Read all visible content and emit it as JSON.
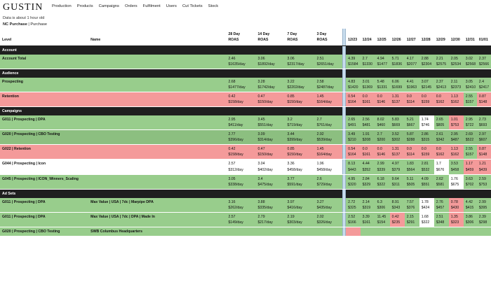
{
  "brand": "GUSTIN",
  "nav": [
    "Production",
    "Products",
    "Campaigns",
    "Orders",
    "Fulfilment",
    "Users",
    "Cut Tickets",
    "Stock"
  ],
  "note": "Data is about 1 hour old",
  "breadcrumb": {
    "current": "NC Purchase",
    "sep": "|",
    "parent": "Purchase"
  },
  "columns": {
    "level": "Level",
    "name": "Name",
    "periods": [
      {
        "title": "28 Day",
        "sub": "ROAS"
      },
      {
        "title": "14 Day",
        "sub": "ROAS"
      },
      {
        "title": "7 Day",
        "sub": "ROAS"
      },
      {
        "title": "3 Day",
        "sub": "ROAS"
      }
    ],
    "days": [
      "12/23",
      "12/24",
      "12/25",
      "12/26",
      "12/27",
      "12/28",
      "12/29",
      "12/30",
      "12/31",
      "01/01"
    ]
  },
  "colors": {
    "green": "#98cd8c",
    "dark_green": "#8cbf80",
    "red": "#f49a9a",
    "white": "#ffffff",
    "section": "#1f1f1f"
  },
  "sections": [
    {
      "title": "Account",
      "rows": [
        {
          "level": "Account Total",
          "name": "",
          "bg": "g",
          "periods": [
            [
              "2.46",
              "$1635/day"
            ],
            [
              "3.06",
              "$1892/day"
            ],
            [
              "3.06",
              "$2317/day"
            ],
            [
              "2.51",
              "$2651/day"
            ]
          ],
          "days": [
            [
              "4.39",
              "$1584",
              "g"
            ],
            [
              "2.7",
              "$1330",
              "g"
            ],
            [
              "4.94",
              "$1477",
              "g"
            ],
            [
              "5.71",
              "$1836",
              "g"
            ],
            [
              "4.17",
              "$2077",
              "g"
            ],
            [
              "2.88",
              "$2304",
              "g"
            ],
            [
              "2.21",
              "$2575",
              "g"
            ],
            [
              "2.05",
              "$2534",
              "g"
            ],
            [
              "3.02",
              "$2568",
              "g"
            ],
            [
              "2.37",
              "$2566",
              "g"
            ]
          ]
        }
      ]
    },
    {
      "title": "Audience",
      "rows": [
        {
          "level": "Prospecting",
          "name": "",
          "bg": "g",
          "periods": [
            [
              "2.68",
              "$1477/day"
            ],
            [
              "3.28",
              "$1742/day"
            ],
            [
              "3.22",
              "$2202/day"
            ],
            [
              "2.58",
              "$2487/day"
            ]
          ],
          "days": [
            [
              "4.83",
              "$1420",
              "g"
            ],
            [
              "3.01",
              "$1369",
              "g"
            ],
            [
              "5.48",
              "$1331",
              "g"
            ],
            [
              "6.06",
              "$1699",
              "g"
            ],
            [
              "4.41",
              "$1963",
              "g"
            ],
            [
              "3.07",
              "$2145",
              "g"
            ],
            [
              "2.37",
              "$2413",
              "g"
            ],
            [
              "2.11",
              "$2373",
              "g"
            ],
            [
              "3.05",
              "$2410",
              "g"
            ],
            [
              "2.4",
              "$2417",
              "g"
            ]
          ]
        },
        {
          "level": "Retention",
          "name": "",
          "bg": "r",
          "periods": [
            [
              "0.42",
              "$158/day"
            ],
            [
              "0.47",
              "$150/day"
            ],
            [
              "0.85",
              "$150/day"
            ],
            [
              "1.45",
              "$164/day"
            ]
          ],
          "days": [
            [
              "0.54",
              "$164",
              "r"
            ],
            [
              "0.0",
              "$161",
              "r"
            ],
            [
              "0.0",
              "$146",
              "r"
            ],
            [
              "1.31",
              "$137",
              "r"
            ],
            [
              "0.0",
              "$114",
              "r"
            ],
            [
              "0.0",
              "$159",
              "r"
            ],
            [
              "0.0",
              "$162",
              "r"
            ],
            [
              "1.13",
              "$162",
              "r"
            ],
            [
              "2.55",
              "$157",
              "g"
            ],
            [
              "0.87",
              "$148",
              "r"
            ]
          ]
        }
      ]
    },
    {
      "title": "Campaigns",
      "rows": [
        {
          "level": "G011 | Prospecting | DPA",
          "name": "",
          "bg": "g",
          "periods": [
            [
              "2.95",
              "$411/day"
            ],
            [
              "3.45",
              "$551/day"
            ],
            [
              "3.2",
              "$719/day"
            ],
            [
              "2.7",
              "$761/day"
            ]
          ],
          "days": [
            [
              "2.65",
              "$491",
              "g"
            ],
            [
              "2.56",
              "$481",
              "g"
            ],
            [
              "8.02",
              "$460",
              "g"
            ],
            [
              "5.83",
              "$669",
              "g"
            ],
            [
              "5.21",
              "$667",
              "g"
            ],
            [
              "1.74",
              "$746",
              "w"
            ],
            [
              "2.65",
              "$805",
              "g"
            ],
            [
              "1.01",
              "$753",
              "r"
            ],
            [
              "2.95",
              "$722",
              "g"
            ],
            [
              "2.73",
              "$693",
              "g"
            ]
          ]
        },
        {
          "level": "G020 | Prospecting | CBO Testing",
          "name": "",
          "bg": "dg",
          "periods": [
            [
              "2.77",
              "$396/day"
            ],
            [
              "3.09",
              "$314/day"
            ],
            [
              "3.44",
              "$399/day"
            ],
            [
              "2.92",
              "$539/day"
            ]
          ],
          "days": [
            [
              "3.49",
              "$210",
              "dg"
            ],
            [
              "1.91",
              "$208",
              "dg"
            ],
            [
              "2.7",
              "$200",
              "dg"
            ],
            [
              "3.52",
              "$302",
              "dg"
            ],
            [
              "5.87",
              "$288",
              "dg"
            ],
            [
              "2.86",
              "$315",
              "dg"
            ],
            [
              "2.61",
              "$342",
              "dg"
            ],
            [
              "2.95",
              "$487",
              "dg"
            ],
            [
              "2.69",
              "$522",
              "dg"
            ],
            [
              "2.97",
              "$607",
              "dg"
            ]
          ]
        },
        {
          "level": "G022 | Retention",
          "name": "",
          "bg": "r",
          "periods": [
            [
              "0.42",
              "$158/day"
            ],
            [
              "0.47",
              "$150/day"
            ],
            [
              "0.85",
              "$150/day"
            ],
            [
              "1.45",
              "$164/day"
            ]
          ],
          "days": [
            [
              "0.54",
              "$164",
              "r"
            ],
            [
              "0.0",
              "$161",
              "r"
            ],
            [
              "0.0",
              "$146",
              "r"
            ],
            [
              "1.31",
              "$137",
              "r"
            ],
            [
              "0.0",
              "$114",
              "r"
            ],
            [
              "0.0",
              "$159",
              "r"
            ],
            [
              "0.0",
              "$162",
              "r"
            ],
            [
              "1.13",
              "$162",
              "r"
            ],
            [
              "2.55",
              "$157",
              "g"
            ],
            [
              "0.87",
              "$148",
              "r"
            ]
          ]
        },
        {
          "level": "G044 | Prospecting | Icon",
          "name": "",
          "bg": "w",
          "periods": [
            [
              "2.57",
              "$312/day"
            ],
            [
              "3.04",
              "$402/day"
            ],
            [
              "3.36",
              "$458/day"
            ],
            [
              "1.96",
              "$458/day"
            ]
          ],
          "days": [
            [
              "8.13",
              "$443",
              "g"
            ],
            [
              "4.44",
              "$352",
              "g"
            ],
            [
              "2.99",
              "$339",
              "g"
            ],
            [
              "4.97",
              "$379",
              "g"
            ],
            [
              "1.83",
              "$564",
              "g"
            ],
            [
              "2.81",
              "$532",
              "g"
            ],
            [
              "1.7",
              "$676",
              "w"
            ],
            [
              "3.53",
              "$458",
              "g"
            ],
            [
              "1.17",
              "$459",
              "r"
            ],
            [
              "1.21",
              "$439",
              "r"
            ]
          ]
        },
        {
          "level": "G045 | Prospecting | ICON_Winners_Scaling",
          "name": "",
          "bg": "g",
          "periods": [
            [
              "3.05",
              "$338/day"
            ],
            [
              "3.4",
              "$475/day"
            ],
            [
              "3.77",
              "$591/day"
            ],
            [
              "2.6",
              "$729/day"
            ]
          ],
          "days": [
            [
              "4.95",
              "$320",
              "g"
            ],
            [
              "2.84",
              "$329",
              "g"
            ],
            [
              "6.18",
              "$322",
              "g"
            ],
            [
              "9.64",
              "$311",
              "g"
            ],
            [
              "5.11",
              "$505",
              "g"
            ],
            [
              "4.09",
              "$551",
              "g"
            ],
            [
              "2.62",
              "$581",
              "g"
            ],
            [
              "1.76",
              "$675",
              "w"
            ],
            [
              "3.63",
              "$702",
              "g"
            ],
            [
              "2.59",
              "$753",
              "g"
            ]
          ]
        }
      ]
    },
    {
      "title": "Ad Sets",
      "rows": [
        {
          "level": "G011 | Prospecting | DPA",
          "name": "Max Value | USA | 7dc | Marpipe DPA",
          "bg": "g",
          "periods": [
            [
              "3.16",
              "$262/day"
            ],
            [
              "3.88",
              "$335/day"
            ],
            [
              "3.97",
              "$416/day"
            ],
            [
              "3.27",
              "$435/day"
            ]
          ],
          "days": [
            [
              "2.72",
              "$325",
              "g"
            ],
            [
              "2.14",
              "$319",
              "g"
            ],
            [
              "6.3",
              "$306",
              "g"
            ],
            [
              "8.91",
              "$343",
              "g"
            ],
            [
              "7.57",
              "$376",
              "g"
            ],
            [
              "1.78",
              "$424",
              "w"
            ],
            [
              "2.76",
              "$457",
              "g"
            ],
            [
              "0.78",
              "$430",
              "r"
            ],
            [
              "4.42",
              "$415",
              "g"
            ],
            [
              "2.99",
              "$395",
              "g"
            ]
          ]
        },
        {
          "level": "G011 | Prospecting | DPA",
          "name": "Max Value | USA | 7dc | DPA | Made In",
          "bg": "g",
          "periods": [
            [
              "2.57",
              "$149/day"
            ],
            [
              "2.79",
              "$217/day"
            ],
            [
              "2.19",
              "$303/day"
            ],
            [
              "2.02",
              "$326/day"
            ]
          ],
          "days": [
            [
              "2.52",
              "$166",
              "g"
            ],
            [
              "3.39",
              "$161",
              "g"
            ],
            [
              "11.45",
              "$154",
              "g"
            ],
            [
              "0.42",
              "$235",
              "r"
            ],
            [
              "2.15",
              "$291",
              "g"
            ],
            [
              "1.68",
              "$322",
              "w"
            ],
            [
              "2.51",
              "$348",
              "g"
            ],
            [
              "1.35",
              "$323",
              "r"
            ],
            [
              "3.86",
              "$306",
              "g"
            ],
            [
              "2.39",
              "$298",
              "g"
            ]
          ]
        },
        {
          "level": "G020 | Prospecting | CBO Testing",
          "name": "SWB Columbus Headquarters",
          "bg": "g",
          "periods": [
            [
              "",
              ""
            ],
            [
              "",
              ""
            ],
            [
              "",
              ""
            ],
            [
              "",
              ""
            ]
          ],
          "days": [
            [
              "",
              "",
              "r"
            ],
            [
              "",
              "",
              "g"
            ],
            [
              "",
              "",
              "g"
            ],
            [
              "",
              "",
              "g"
            ],
            [
              "",
              "",
              "g"
            ],
            [
              "",
              "",
              "g"
            ],
            [
              "",
              "",
              "g"
            ],
            [
              "",
              "",
              "g"
            ],
            [
              "",
              "",
              "g"
            ],
            [
              "",
              "",
              "g"
            ]
          ]
        }
      ]
    }
  ]
}
